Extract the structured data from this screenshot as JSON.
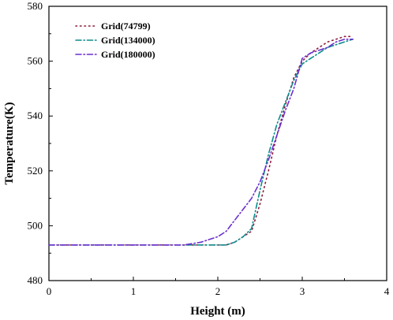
{
  "chart_data": {
    "type": "line",
    "title": "",
    "xlabel": "Height (m)",
    "ylabel": "Temperature(K)",
    "xlim": [
      0,
      4
    ],
    "ylim": [
      480,
      580
    ],
    "x_ticks": [
      0,
      1,
      2,
      3,
      4
    ],
    "y_ticks": [
      480,
      500,
      520,
      540,
      560,
      580
    ],
    "grid": false,
    "legend_position": "top-left",
    "series": [
      {
        "name": "Grid(74799)",
        "color": "#8b1a3a",
        "dash": "dotted",
        "x": [
          0,
          1.0,
          2.0,
          2.1,
          2.2,
          2.3,
          2.4,
          2.5,
          2.6,
          2.7,
          2.8,
          2.9,
          3.0,
          3.1,
          3.2,
          3.3,
          3.4,
          3.5,
          3.6
        ],
        "y": [
          493,
          493,
          493,
          493,
          494,
          496,
          498,
          508,
          520,
          533,
          544,
          554,
          560,
          563,
          565,
          567,
          568,
          569,
          569
        ]
      },
      {
        "name": "Grid(134000)",
        "color": "#0e8c8c",
        "dash": "dash-dot",
        "x": [
          0,
          1.0,
          2.0,
          2.1,
          2.2,
          2.3,
          2.4,
          2.5,
          2.6,
          2.7,
          2.8,
          2.9,
          3.0,
          3.1,
          3.2,
          3.3,
          3.4,
          3.5,
          3.6
        ],
        "y": [
          493,
          493,
          493,
          493,
          494,
          496,
          499,
          513,
          526,
          537,
          545,
          553,
          559,
          561,
          563,
          565,
          566,
          567,
          568
        ]
      },
      {
        "name": "Grid(180000)",
        "color": "#6a2fd0",
        "dash": "dash-dot",
        "x": [
          0,
          1.0,
          1.6,
          1.8,
          2.0,
          2.1,
          2.2,
          2.3,
          2.4,
          2.5,
          2.6,
          2.7,
          2.8,
          2.9,
          3.0,
          3.1,
          3.2,
          3.3,
          3.4,
          3.5,
          3.6
        ],
        "y": [
          493,
          493,
          493,
          494,
          496,
          498,
          502,
          506,
          510,
          516,
          524,
          533,
          542,
          550,
          561,
          563,
          564,
          565,
          567,
          568,
          568
        ]
      }
    ]
  }
}
